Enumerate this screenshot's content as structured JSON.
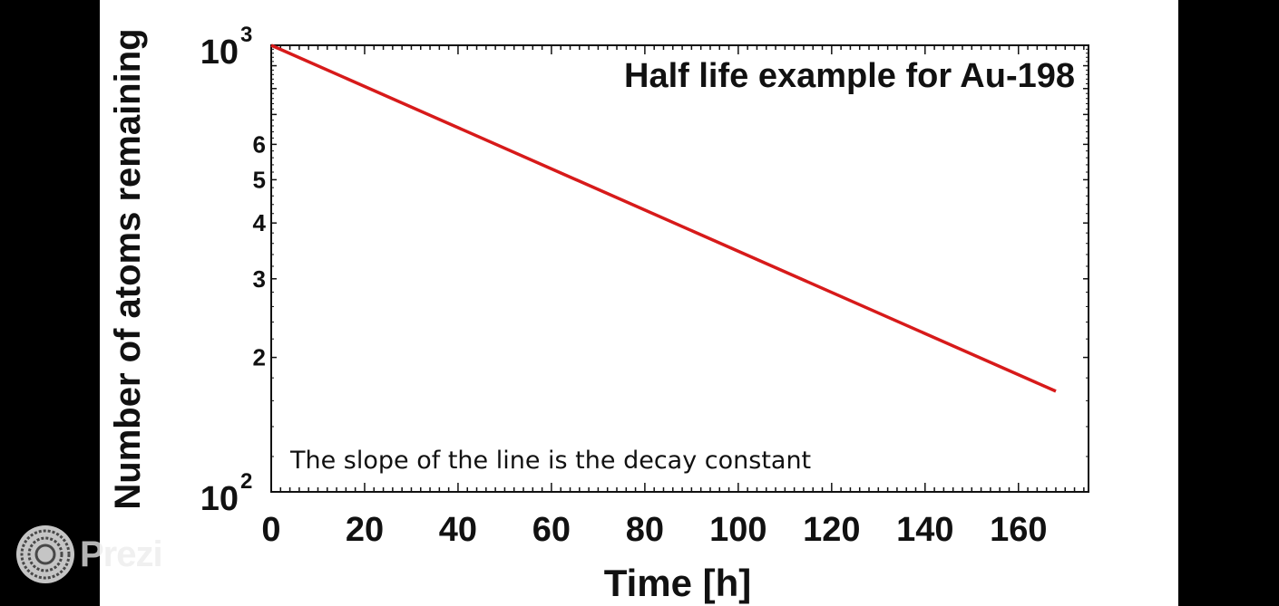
{
  "chart_data": {
    "type": "line",
    "title": "Half life example for Au-198",
    "annotation": "The slope of the line is the decay constant",
    "xlabel": "Time [h]",
    "ylabel": "Number of atoms remaining",
    "xlim": [
      0,
      175
    ],
    "ylim": [
      100,
      1000
    ],
    "yscale": "log",
    "x_ticks": [
      "0",
      "20",
      "40",
      "60",
      "80",
      "100",
      "120",
      "140",
      "160"
    ],
    "y_tick_major": [
      {
        "value": 1000,
        "base": "10",
        "exp": "3"
      },
      {
        "value": 100,
        "base": "10",
        "exp": "2"
      }
    ],
    "y_tick_minor": [
      {
        "value": 600,
        "label": "6"
      },
      {
        "value": 500,
        "label": "5"
      },
      {
        "value": 400,
        "label": "4"
      },
      {
        "value": 300,
        "label": "3"
      },
      {
        "value": 200,
        "label": "2"
      }
    ],
    "grid": false,
    "series": [
      {
        "color": "#d71a1a",
        "x": [
          0,
          168
        ],
        "y": [
          1000,
          168
        ]
      }
    ]
  },
  "watermark": {
    "text": "Prezi",
    "icon": "prezi-logo-icon"
  },
  "colors": {
    "background": "#000000",
    "slide": "#ffffff",
    "line": "#d71a1a"
  }
}
